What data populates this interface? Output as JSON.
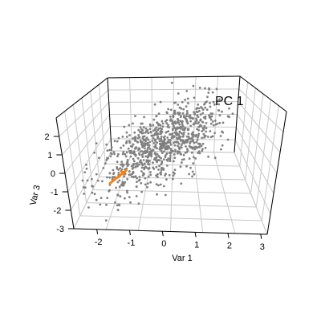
{
  "chart_data": {
    "type": "scatter",
    "projection": "3d",
    "title": "",
    "xlabel": "Var 1",
    "zlabel": "Var 3",
    "xticks": [
      "-2",
      "-1",
      "0",
      "1",
      "2",
      "3"
    ],
    "zticks": [
      "-3",
      "-2",
      "-1",
      "0",
      "1",
      "2"
    ],
    "xlim": [
      -2.7,
      3.2
    ],
    "ylim": [
      -3,
      3
    ],
    "zlim": [
      -3,
      3
    ],
    "grid": true,
    "point_color": "#808080",
    "arrow": {
      "label": "PC 1",
      "color": "#ff7f0e",
      "direction": [
        0.577,
        0.577,
        0.577
      ]
    },
    "point_cloud": {
      "n": 900,
      "mean": [
        0,
        0,
        0
      ],
      "sd": 1,
      "correlation": 0.55
    }
  }
}
